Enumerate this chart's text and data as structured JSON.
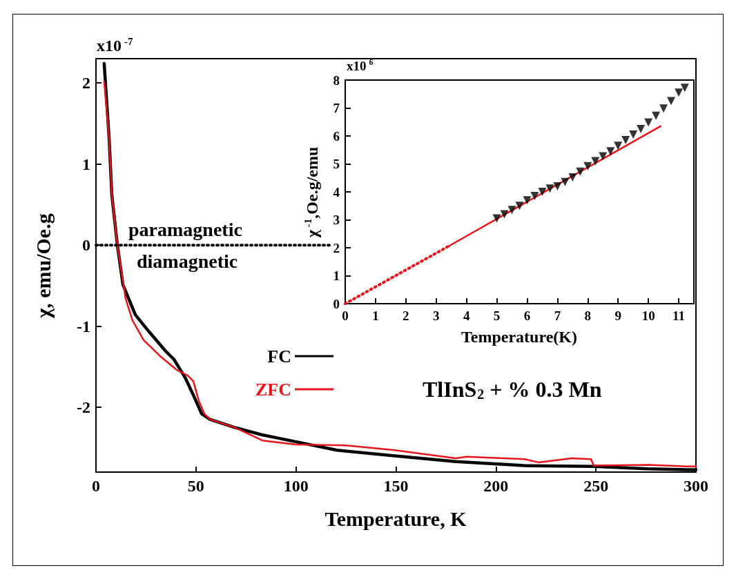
{
  "chart_data": [
    {
      "type": "line",
      "xlabel": "Temperature, K",
      "ylabel": "χ, emu/Oe.g",
      "xlim": [
        0,
        300
      ],
      "xticks": [
        0,
        50,
        100,
        150,
        200,
        250,
        300
      ],
      "ylim": [
        -2.8,
        2.3
      ],
      "yticks": [
        -2,
        -1,
        0,
        1,
        2
      ],
      "grid": false,
      "legend": "center left",
      "marker": "none",
      "series": [
        {
          "name": "FC",
          "color": "#000000",
          "x": [
            4.1,
            6.6,
            7.9,
            10.7,
            13.5,
            19.7,
            26.6,
            34.9,
            39,
            44.5,
            48.7,
            52.8,
            57,
            69.4,
            83,
            92.9,
            120.5,
            149.5,
            179.8,
            214,
            249,
            276,
            295,
            300
          ],
          "values": [
            2.24,
            1.31,
            0.63,
            0,
            -0.49,
            -0.86,
            -1.07,
            -1.31,
            -1.41,
            -1.63,
            -1.85,
            -2.08,
            -2.15,
            -2.25,
            -2.34,
            -2.39,
            -2.53,
            -2.6,
            -2.67,
            -2.72,
            -2.73,
            -2.76,
            -2.77,
            -2.77
          ]
        },
        {
          "name": "ZFC",
          "color": "#e8141b",
          "x": [
            4.1,
            6.6,
            7.9,
            10.7,
            14.8,
            18.3,
            23.8,
            32.1,
            40.4,
            45.9,
            48.7,
            51.4,
            54.2,
            57,
            69.4,
            83.2,
            99.8,
            124.6,
            149.5,
            179.8,
            185.4,
            214.4,
            221.3,
            237.8,
            247.5,
            248.9,
            276.5,
            295.1,
            300
          ],
          "values": [
            2.02,
            1.31,
            0.63,
            0,
            -0.66,
            -0.93,
            -1.17,
            -1.37,
            -1.54,
            -1.61,
            -1.68,
            -1.92,
            -2.08,
            -2.15,
            -2.25,
            -2.41,
            -2.46,
            -2.47,
            -2.53,
            -2.63,
            -2.61,
            -2.64,
            -2.68,
            -2.63,
            -2.64,
            -2.72,
            -2.71,
            -2.73,
            -2.73
          ]
        },
        {
          "color": "#000000",
          "line_style": "dotted",
          "x": [
            0,
            118
          ],
          "values": [
            0,
            0
          ]
        }
      ],
      "annotations": [
        "x10$^{-7}$",
        "paramagnetic",
        "diamagnetic",
        "TlInS$_{2}$ + % 0.3 Mn"
      ]
    },
    {
      "type": "line",
      "xlabel": "Temperature(K)",
      "ylabel": "χ$^{-1}$,Oe.g/emu",
      "xlim": [
        0,
        11.5
      ],
      "xticks": [
        0,
        1,
        2,
        3,
        4,
        5,
        6,
        7,
        8,
        9,
        10,
        11
      ],
      "ylim": [
        0,
        8
      ],
      "yticks": [
        0,
        1,
        2,
        3,
        4,
        5,
        6,
        7,
        8
      ],
      "grid": false,
      "marker": "none",
      "series": [
        {
          "type": "scatter",
          "marker": "triangle",
          "color": "#000000",
          "x": [
            5.0,
            5.25,
            5.5,
            5.75,
            6.0,
            6.25,
            6.5,
            6.75,
            7.0,
            7.25,
            7.5,
            7.75,
            8.0,
            8.25,
            8.5,
            8.75,
            9.0,
            9.25,
            9.5,
            9.75,
            10.0,
            10.25,
            10.5,
            10.75,
            11.0,
            11.2
          ],
          "values": [
            3.05,
            3.2,
            3.35,
            3.5,
            3.7,
            3.85,
            4.0,
            4.12,
            4.2,
            4.35,
            4.52,
            4.72,
            4.92,
            5.1,
            5.27,
            5.45,
            5.65,
            5.85,
            6.05,
            6.25,
            6.48,
            6.72,
            6.98,
            7.25,
            7.55,
            7.72
          ]
        },
        {
          "color": "#e8141b",
          "line_style": "dotted",
          "x": [
            0,
            3.4
          ],
          "values": [
            0,
            2.05
          ]
        },
        {
          "color": "#e8141b",
          "line_style": "solid",
          "x": [
            3.4,
            10.4
          ],
          "values": [
            2.05,
            6.35
          ]
        }
      ],
      "annotations": [
        "x10$^{6}$"
      ]
    }
  ]
}
